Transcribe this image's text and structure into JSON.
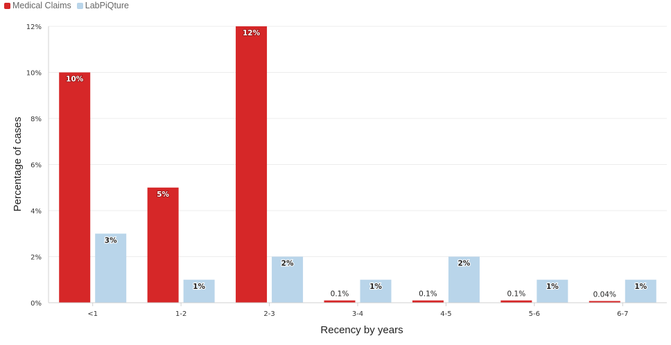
{
  "chart_data": {
    "type": "bar",
    "categories": [
      "<1",
      "1-2",
      "2-3",
      "3-4",
      "4-5",
      "5-6",
      "6-7"
    ],
    "series": [
      {
        "name": "Medical Claims",
        "color": "#d62728",
        "values": [
          10,
          5,
          12,
          0.1,
          0.1,
          0.1,
          0.04
        ],
        "labels": [
          "10%",
          "5%",
          "12%",
          "0.1%",
          "0.1%",
          "0.1%",
          "0.04%"
        ]
      },
      {
        "name": "LabPiQture",
        "color": "#b9d5ea",
        "values": [
          3,
          1,
          2,
          1,
          2,
          1,
          1
        ],
        "labels": [
          "3%",
          "1%",
          "2%",
          "1%",
          "2%",
          "1%",
          "1%"
        ]
      }
    ],
    "ylim": [
      0,
      12
    ],
    "yticks": [
      "0%",
      "2%",
      "4%",
      "6%",
      "8%",
      "10%",
      "12%"
    ],
    "xlabel": "Recency by years",
    "ylabel": "Percentage of cases",
    "grid": true,
    "legend_position": "top-left"
  }
}
